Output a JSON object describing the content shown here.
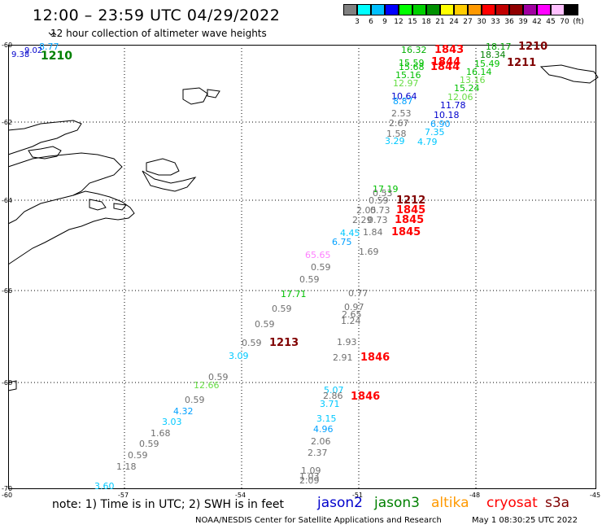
{
  "header": {
    "title": "12:00 – 23:59 UTC 04/29/2022",
    "subtitle": "12 hour collection of altimeter wave heights"
  },
  "scale": {
    "colors": [
      "#808080",
      "#00ffff",
      "#00c0ff",
      "#0000ff",
      "#00ff00",
      "#00d000",
      "#009000",
      "#ffff00",
      "#ffcc00",
      "#ff9900",
      "#ff0000",
      "#c00000",
      "#900000",
      "#a000a0",
      "#ff00ff",
      "#ffc0ff",
      "#000000"
    ],
    "labels": [
      "3",
      "6",
      "9",
      "12",
      "15",
      "18",
      "21",
      "24",
      "27",
      "30",
      "33",
      "36",
      "39",
      "42",
      "45",
      "70",
      "(ft)"
    ]
  },
  "axes": {
    "lat_labels": [
      "-60",
      "-62",
      "-64",
      "-66",
      "-68",
      "-70"
    ],
    "lon_labels": [
      "-60",
      "-57",
      "-54",
      "-51",
      "-48",
      "-45"
    ]
  },
  "wave_labels": [
    {
      "t": "8.77",
      "c": "#00a0ff"
    },
    {
      "t": "9.02",
      "c": "#0000cc"
    },
    {
      "t": "9.38",
      "c": "#0000cc"
    },
    {
      "t": "1210",
      "c": "#008000"
    },
    {
      "t": "16.32",
      "c": "#00b000"
    },
    {
      "t": "1843",
      "c": "#ff0000"
    },
    {
      "t": "18.17",
      "c": "#00a000"
    },
    {
      "t": "1210",
      "c": "#800000"
    },
    {
      "t": "18.34",
      "c": "#008000"
    },
    {
      "t": "15.59",
      "c": "#00c000"
    },
    {
      "t": "15.68",
      "c": "#00c000"
    },
    {
      "t": "1844",
      "c": "#ff0000"
    },
    {
      "t": "1844",
      "c": "#ff0000"
    },
    {
      "t": "15.49",
      "c": "#00c000"
    },
    {
      "t": "1211",
      "c": "#800000"
    },
    {
      "t": "16.14",
      "c": "#00c000"
    },
    {
      "t": "15.16",
      "c": "#00c000"
    },
    {
      "t": "13.16",
      "c": "#66dd44"
    },
    {
      "t": "12.97",
      "c": "#66dd44"
    },
    {
      "t": "15.24",
      "c": "#00c000"
    },
    {
      "t": "12.06",
      "c": "#66dd44"
    },
    {
      "t": "10.64",
      "c": "#0000cc"
    },
    {
      "t": "8.87",
      "c": "#00a0ff"
    },
    {
      "t": "11.78",
      "c": "#0000cc"
    },
    {
      "t": "2.53",
      "c": "#707070"
    },
    {
      "t": "10.18",
      "c": "#0000cc"
    },
    {
      "t": "2.67",
      "c": "#707070"
    },
    {
      "t": "6.90",
      "c": "#00a0ff"
    },
    {
      "t": "1.58",
      "c": "#707070"
    },
    {
      "t": "7.35",
      "c": "#00c0ff"
    },
    {
      "t": "3.29",
      "c": "#00c8ff"
    },
    {
      "t": "4.79",
      "c": "#00c8ff"
    },
    {
      "t": "17.19",
      "c": "#00c000"
    },
    {
      "t": "0.53",
      "c": "#707070"
    },
    {
      "t": "0.59",
      "c": "#707070"
    },
    {
      "t": "1212",
      "c": "#800000"
    },
    {
      "t": "2.05",
      "c": "#707070"
    },
    {
      "t": "0.73",
      "c": "#707070"
    },
    {
      "t": "1845",
      "c": "#ff0000"
    },
    {
      "t": "2.29",
      "c": "#707070"
    },
    {
      "t": "0.73",
      "c": "#707070"
    },
    {
      "t": "1845",
      "c": "#ff0000"
    },
    {
      "t": "1.84",
      "c": "#707070"
    },
    {
      "t": "1845",
      "c": "#ff0000"
    },
    {
      "t": "4.45",
      "c": "#00c8ff"
    },
    {
      "t": "6.75",
      "c": "#00a0ff"
    },
    {
      "t": "65.65",
      "c": "#ff80ff"
    },
    {
      "t": "1.69",
      "c": "#707070"
    },
    {
      "t": "0.59",
      "c": "#707070"
    },
    {
      "t": "0.59",
      "c": "#707070"
    },
    {
      "t": "17.71",
      "c": "#00c000"
    },
    {
      "t": "0.77",
      "c": "#707070"
    },
    {
      "t": "0.59",
      "c": "#707070"
    },
    {
      "t": "0.97",
      "c": "#707070"
    },
    {
      "t": "2.65",
      "c": "#707070"
    },
    {
      "t": "1.24",
      "c": "#707070"
    },
    {
      "t": "0.59",
      "c": "#707070"
    },
    {
      "t": "0.59",
      "c": "#707070"
    },
    {
      "t": "1213",
      "c": "#800000"
    },
    {
      "t": "1.93",
      "c": "#707070"
    },
    {
      "t": "3.09",
      "c": "#00c8ff"
    },
    {
      "t": "2.91",
      "c": "#707070"
    },
    {
      "t": "1846",
      "c": "#ff0000"
    },
    {
      "t": "0.59",
      "c": "#707070"
    },
    {
      "t": "12.66",
      "c": "#66dd44"
    },
    {
      "t": "5.07",
      "c": "#00c8ff"
    },
    {
      "t": "2.86",
      "c": "#707070"
    },
    {
      "t": "1846",
      "c": "#ff0000"
    },
    {
      "t": "0.59",
      "c": "#707070"
    },
    {
      "t": "3.71",
      "c": "#00c8ff"
    },
    {
      "t": "4.32",
      "c": "#00a0ff"
    },
    {
      "t": "3.03",
      "c": "#00c8ff"
    },
    {
      "t": "3.15",
      "c": "#00c8ff"
    },
    {
      "t": "1.68",
      "c": "#707070"
    },
    {
      "t": "4.96",
      "c": "#00a0ff"
    },
    {
      "t": "0.59",
      "c": "#707070"
    },
    {
      "t": "2.06",
      "c": "#707070"
    },
    {
      "t": "0.59",
      "c": "#707070"
    },
    {
      "t": "2.37",
      "c": "#707070"
    },
    {
      "t": "1.18",
      "c": "#707070"
    },
    {
      "t": "3.60",
      "c": "#00c8ff"
    },
    {
      "t": "1.09",
      "c": "#707070"
    },
    {
      "t": "1.03",
      "c": "#707070"
    },
    {
      "t": "2.09",
      "c": "#707070"
    }
  ],
  "footer": {
    "note": "note: 1) Time is in UTC; 2) SWH is in feet",
    "satellites": [
      {
        "name": "jason2",
        "color": "#0000cc"
      },
      {
        "name": "jason3",
        "color": "#008000"
      },
      {
        "name": "altika",
        "color": "#ff9900"
      },
      {
        "name": "cryosat",
        "color": "#ff0000"
      },
      {
        "name": "s3a",
        "color": "#800000"
      }
    ],
    "credit": "NOAA/NESDIS Center for Satellite Applications and Research",
    "timestamp": "May  1 08:30:25 UTC 2022"
  }
}
